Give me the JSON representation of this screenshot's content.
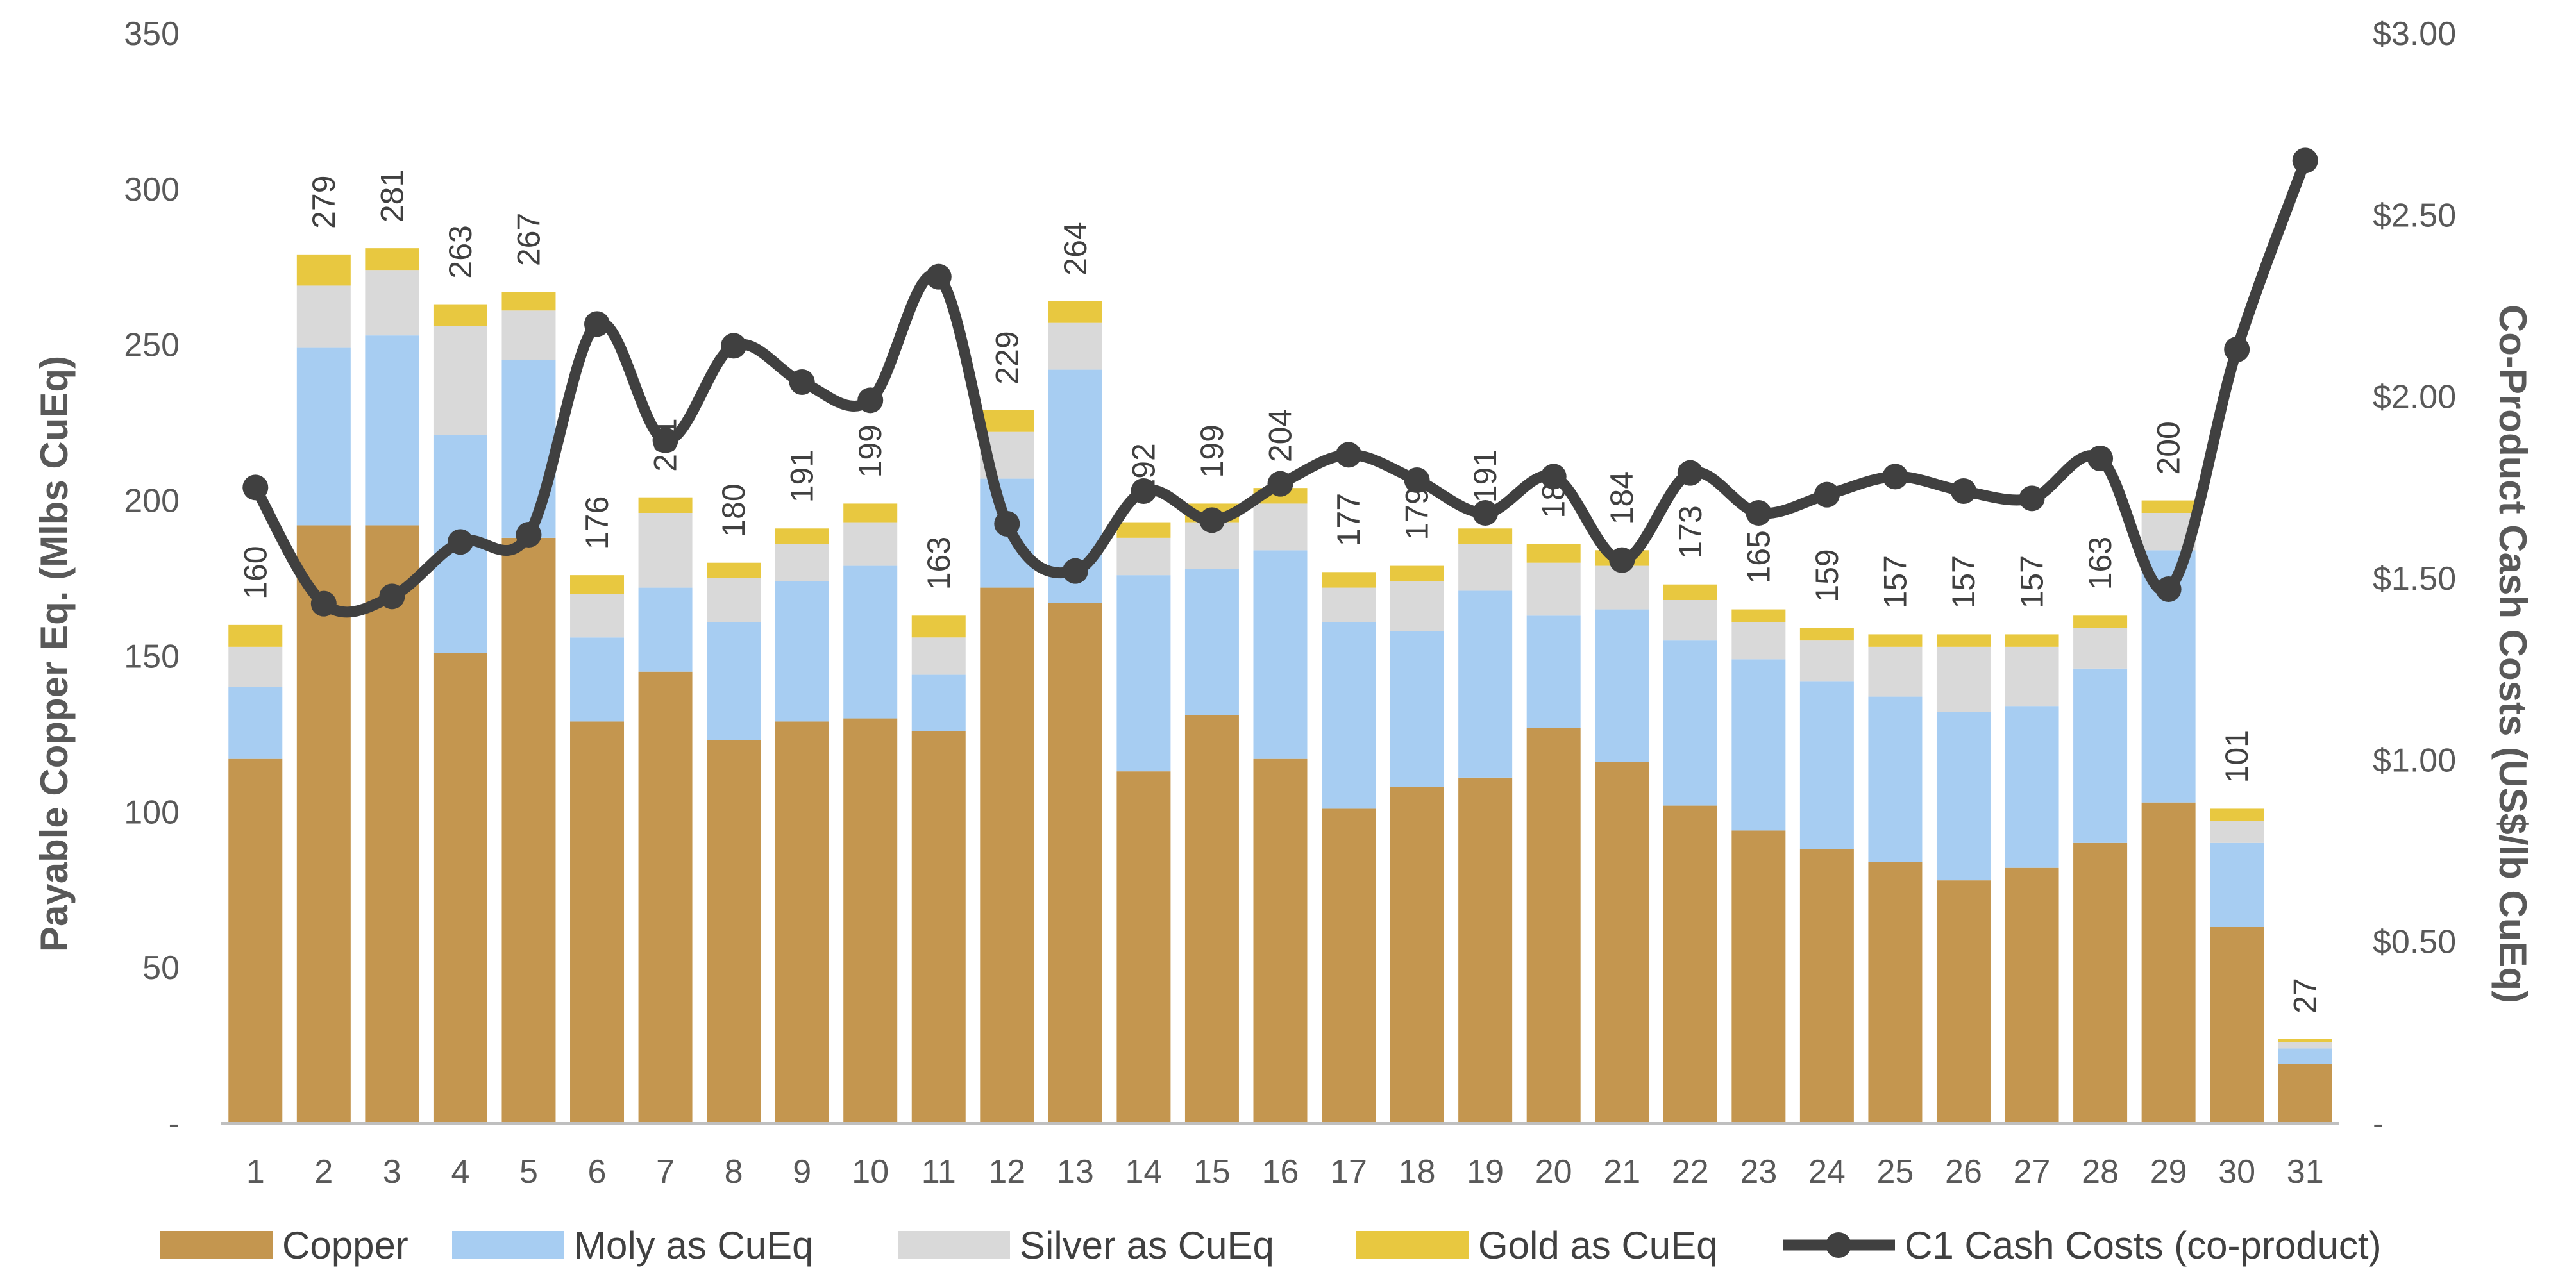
{
  "chart_data": {
    "type": "bar",
    "stacked": true,
    "categories": [
      "1",
      "2",
      "3",
      "4",
      "5",
      "6",
      "7",
      "8",
      "9",
      "10",
      "11",
      "12",
      "13",
      "14",
      "15",
      "16",
      "17",
      "18",
      "19",
      "20",
      "21",
      "22",
      "23",
      "24",
      "25",
      "26",
      "27",
      "28",
      "29",
      "30",
      "31"
    ],
    "series": [
      {
        "name": "Copper",
        "color": "#C4964F",
        "values": [
          117,
          192,
          192,
          151,
          188,
          129,
          145,
          123,
          129,
          130,
          126,
          172,
          167,
          113,
          131,
          117,
          101,
          108,
          111,
          127,
          116,
          102,
          94,
          88,
          84,
          78,
          82,
          90,
          103,
          63,
          19
        ]
      },
      {
        "name": "Moly as CuEq",
        "color": "#A7CDF2",
        "values": [
          23,
          57,
          61,
          70,
          57,
          27,
          27,
          38,
          45,
          49,
          18,
          35,
          75,
          63,
          47,
          67,
          60,
          50,
          60,
          36,
          49,
          53,
          55,
          54,
          53,
          54,
          52,
          56,
          81,
          27,
          5
        ]
      },
      {
        "name": "Silver as CuEq",
        "color": "#D9D9D9",
        "values": [
          13,
          20,
          21,
          35,
          16,
          14,
          24,
          14,
          12,
          14,
          12,
          15,
          15,
          12,
          15,
          15,
          11,
          16,
          15,
          17,
          14,
          13,
          12,
          13,
          16,
          21,
          19,
          13,
          12,
          7,
          2
        ]
      },
      {
        "name": "Gold as CuEq",
        "color": "#E8C840",
        "values": [
          7,
          10,
          7,
          7,
          6,
          6,
          5,
          5,
          5,
          6,
          7,
          7,
          7,
          5,
          6,
          5,
          5,
          5,
          5,
          6,
          5,
          5,
          4,
          4,
          4,
          4,
          4,
          4,
          4,
          4,
          1
        ]
      }
    ],
    "totals": [
      "160",
      "279",
      "281",
      "263",
      "267",
      "176",
      "201",
      "180",
      "191",
      "199",
      "163",
      "229",
      "264",
      "192",
      "199",
      "204",
      "177",
      "179",
      "191",
      "186",
      "184",
      "173",
      "165",
      "159",
      "157",
      "157",
      "157",
      "163",
      "200",
      "101",
      "27"
    ],
    "line_series": {
      "name": "C1 Cash Costs (co-product)",
      "color": "#404040",
      "axis": "right",
      "values": [
        1.75,
        1.43,
        1.45,
        1.6,
        1.62,
        2.2,
        1.88,
        2.14,
        2.04,
        1.99,
        2.33,
        1.65,
        1.52,
        1.74,
        1.66,
        1.76,
        1.84,
        1.77,
        1.68,
        1.78,
        1.55,
        1.79,
        1.68,
        1.73,
        1.78,
        1.74,
        1.72,
        1.83,
        1.47,
        2.13,
        2.65
      ]
    },
    "ylabel": "Payable Copper Eq. (Mlbs CuEq)",
    "y2label": "Co-Product Cash Costs (US$/lb CuEq)",
    "ylim": [
      0,
      350
    ],
    "y2lim": [
      0,
      3.0
    ],
    "yticks": [
      "-",
      "50",
      "100",
      "150",
      "200",
      "250",
      "300",
      "350"
    ],
    "y2ticks": [
      "-",
      "$0.50",
      "$1.00",
      "$1.50",
      "$2.00",
      "$2.50",
      "$3.00"
    ],
    "grid": false,
    "legend_position": "bottom"
  }
}
